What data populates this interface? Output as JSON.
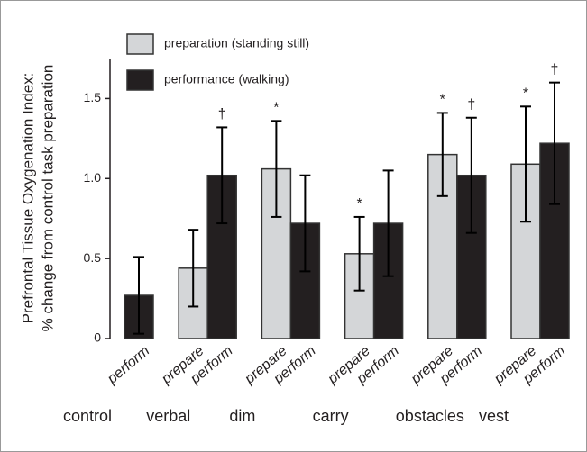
{
  "chart_data": {
    "type": "bar",
    "ylabel": [
      "Prefrontal Tissue Oxygenation Index:",
      "% change from control  task preparation"
    ],
    "categories": [
      "control",
      "verbal",
      "dim",
      "carry",
      "obstacles",
      "vest"
    ],
    "bar_labels": [
      "prepare",
      "perform"
    ],
    "series": [
      {
        "name": "preparation (standing still)",
        "color": "#d4d6d8",
        "values": [
          null,
          0.44,
          1.06,
          0.53,
          1.15,
          1.09
        ],
        "errors": [
          null,
          0.24,
          0.3,
          0.23,
          0.26,
          0.36
        ],
        "markers": [
          null,
          null,
          "*",
          "*",
          "*",
          "*"
        ]
      },
      {
        "name": "performance (walking)",
        "color": "#231f20",
        "values": [
          0.27,
          1.02,
          0.72,
          0.72,
          1.02,
          1.22
        ],
        "errors": [
          0.24,
          0.3,
          0.3,
          0.33,
          0.36,
          0.38
        ],
        "markers": [
          null,
          "†",
          null,
          null,
          "†",
          "†"
        ]
      }
    ],
    "ylim": [
      0,
      1.75
    ],
    "yticks": [
      0,
      0.5,
      {
        "value": 1,
        "label": "1.0"
      },
      1.5
    ],
    "grid": false
  }
}
